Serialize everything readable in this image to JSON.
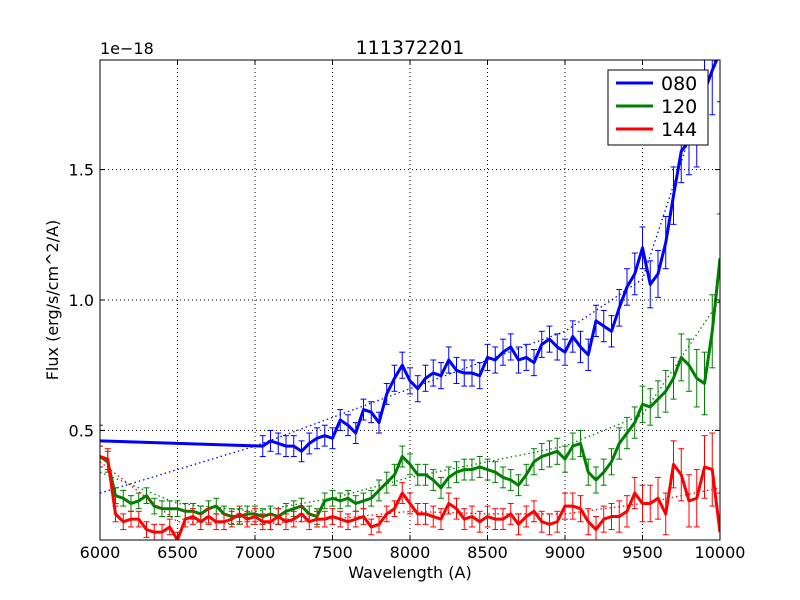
{
  "chart_data": {
    "type": "line",
    "title": "111372201",
    "xlabel": "Wavelength (A)",
    "ylabel": "Flux (erg/s/cm^2/A)",
    "offset_text": "1e−18",
    "xlim": [
      6000,
      10000
    ],
    "ylim": [
      0.08,
      1.92
    ],
    "x_ticks": [
      6000,
      6500,
      7000,
      7500,
      8000,
      8500,
      9000,
      9500,
      10000
    ],
    "x_tick_labels": [
      "6000",
      "6500",
      "7000",
      "7500",
      "8000",
      "8500",
      "9000",
      "9500",
      "10000"
    ],
    "y_ticks": [
      0.5,
      1.0,
      1.5
    ],
    "y_tick_labels": [
      "0.5",
      "1.0",
      "1.5"
    ],
    "grid": true,
    "legend_position": "top-right",
    "series": [
      {
        "name": "080",
        "color": "#0000ff",
        "x": [
          6000,
          7050,
          7100,
          7150,
          7200,
          7250,
          7300,
          7350,
          7400,
          7450,
          7500,
          7550,
          7600,
          7650,
          7700,
          7750,
          7800,
          7850,
          7900,
          7950,
          8000,
          8050,
          8100,
          8150,
          8200,
          8250,
          8300,
          8350,
          8400,
          8450,
          8500,
          8550,
          8600,
          8650,
          8700,
          8750,
          8800,
          8850,
          8900,
          8950,
          9000,
          9050,
          9100,
          9150,
          9200,
          9250,
          9300,
          9350,
          9400,
          9450,
          9500,
          9550,
          9600,
          9650,
          9700,
          9750,
          9800,
          9850,
          9900,
          9950,
          10000
        ],
        "y": [
          0.46,
          0.44,
          0.46,
          0.45,
          0.44,
          0.44,
          0.42,
          0.45,
          0.47,
          0.48,
          0.47,
          0.54,
          0.52,
          0.49,
          0.58,
          0.57,
          0.53,
          0.64,
          0.7,
          0.75,
          0.69,
          0.66,
          0.7,
          0.72,
          0.71,
          0.77,
          0.73,
          0.72,
          0.72,
          0.71,
          0.78,
          0.77,
          0.8,
          0.82,
          0.77,
          0.78,
          0.76,
          0.83,
          0.85,
          0.82,
          0.8,
          0.86,
          0.82,
          0.79,
          0.92,
          0.9,
          0.88,
          0.97,
          1.05,
          1.1,
          1.2,
          1.06,
          1.1,
          1.22,
          1.4,
          1.57,
          1.61,
          1.65,
          1.8,
          1.88,
          1.95
        ],
        "err": [
          0.06,
          0.04,
          0.04,
          0.04,
          0.04,
          0.04,
          0.04,
          0.04,
          0.04,
          0.04,
          0.04,
          0.04,
          0.04,
          0.04,
          0.04,
          0.04,
          0.04,
          0.04,
          0.05,
          0.05,
          0.05,
          0.05,
          0.05,
          0.05,
          0.05,
          0.05,
          0.05,
          0.05,
          0.05,
          0.05,
          0.05,
          0.05,
          0.05,
          0.05,
          0.05,
          0.05,
          0.05,
          0.05,
          0.05,
          0.05,
          0.05,
          0.06,
          0.06,
          0.06,
          0.06,
          0.06,
          0.06,
          0.07,
          0.07,
          0.08,
          0.08,
          0.09,
          0.09,
          0.1,
          0.11,
          0.12,
          0.13,
          0.14,
          0.15,
          0.17,
          0.19
        ],
        "fit_x": [
          6000,
          6500,
          7000,
          7500,
          8000,
          8500,
          9000,
          9500,
          10000
        ],
        "fit_y": [
          0.26,
          0.35,
          0.44,
          0.55,
          0.66,
          0.77,
          0.88,
          1.08,
          1.98
        ]
      },
      {
        "name": "120",
        "color": "#008000",
        "x": [
          6000,
          6050,
          6100,
          6150,
          6200,
          6250,
          6300,
          6350,
          6400,
          6450,
          6500,
          6550,
          6600,
          6650,
          6700,
          6750,
          6800,
          6850,
          6900,
          6950,
          7000,
          7050,
          7100,
          7150,
          7200,
          7250,
          7300,
          7350,
          7400,
          7450,
          7500,
          7550,
          7600,
          7650,
          7700,
          7750,
          7800,
          7850,
          7900,
          7950,
          8000,
          8050,
          8100,
          8150,
          8200,
          8250,
          8300,
          8350,
          8400,
          8450,
          8500,
          8550,
          8600,
          8650,
          8700,
          8750,
          8800,
          8850,
          8900,
          8950,
          9000,
          9050,
          9100,
          9150,
          9200,
          9250,
          9300,
          9350,
          9400,
          9450,
          9500,
          9550,
          9600,
          9650,
          9700,
          9750,
          9800,
          9850,
          9900,
          9950,
          10000
        ],
        "y": [
          0.4,
          0.38,
          0.25,
          0.24,
          0.22,
          0.23,
          0.25,
          0.21,
          0.2,
          0.2,
          0.2,
          0.19,
          0.19,
          0.18,
          0.2,
          0.21,
          0.18,
          0.17,
          0.17,
          0.18,
          0.18,
          0.17,
          0.18,
          0.17,
          0.19,
          0.2,
          0.21,
          0.18,
          0.17,
          0.23,
          0.24,
          0.23,
          0.24,
          0.22,
          0.23,
          0.24,
          0.27,
          0.3,
          0.33,
          0.4,
          0.37,
          0.33,
          0.33,
          0.31,
          0.28,
          0.32,
          0.34,
          0.35,
          0.35,
          0.36,
          0.35,
          0.34,
          0.32,
          0.31,
          0.29,
          0.33,
          0.38,
          0.4,
          0.41,
          0.42,
          0.39,
          0.44,
          0.45,
          0.34,
          0.31,
          0.34,
          0.38,
          0.45,
          0.49,
          0.53,
          0.6,
          0.59,
          0.62,
          0.65,
          0.7,
          0.78,
          0.75,
          0.7,
          0.68,
          0.88,
          1.16
        ],
        "err": [
          0.04,
          0.04,
          0.03,
          0.03,
          0.03,
          0.03,
          0.03,
          0.03,
          0.03,
          0.03,
          0.03,
          0.03,
          0.03,
          0.03,
          0.03,
          0.03,
          0.03,
          0.03,
          0.03,
          0.03,
          0.03,
          0.03,
          0.03,
          0.03,
          0.03,
          0.03,
          0.03,
          0.03,
          0.03,
          0.03,
          0.03,
          0.03,
          0.03,
          0.03,
          0.03,
          0.03,
          0.04,
          0.04,
          0.04,
          0.04,
          0.04,
          0.04,
          0.04,
          0.04,
          0.04,
          0.04,
          0.04,
          0.04,
          0.04,
          0.04,
          0.04,
          0.04,
          0.04,
          0.04,
          0.04,
          0.04,
          0.05,
          0.05,
          0.05,
          0.05,
          0.05,
          0.05,
          0.05,
          0.05,
          0.05,
          0.05,
          0.05,
          0.06,
          0.06,
          0.06,
          0.07,
          0.07,
          0.07,
          0.08,
          0.08,
          0.09,
          0.1,
          0.11,
          0.12,
          0.14,
          0.17
        ],
        "fit_x": [
          6000,
          6500,
          7000,
          7500,
          8000,
          8500,
          9000,
          9500,
          10000
        ],
        "fit_y": [
          0.34,
          0.22,
          0.19,
          0.24,
          0.32,
          0.38,
          0.44,
          0.56,
          1.0
        ]
      },
      {
        "name": "144",
        "color": "#ff0000",
        "x": [
          6000,
          6050,
          6100,
          6150,
          6200,
          6250,
          6300,
          6350,
          6400,
          6450,
          6500,
          6550,
          6600,
          6650,
          6700,
          6750,
          6800,
          6850,
          6900,
          6950,
          7000,
          7050,
          7100,
          7150,
          7200,
          7250,
          7300,
          7350,
          7400,
          7450,
          7500,
          7550,
          7600,
          7650,
          7700,
          7750,
          7800,
          7850,
          7900,
          7950,
          8000,
          8050,
          8100,
          8150,
          8200,
          8250,
          8300,
          8350,
          8400,
          8450,
          8500,
          8550,
          8600,
          8650,
          8700,
          8750,
          8800,
          8850,
          8900,
          8950,
          9000,
          9050,
          9100,
          9150,
          9200,
          9250,
          9300,
          9350,
          9400,
          9450,
          9500,
          9550,
          9600,
          9650,
          9700,
          9750,
          9800,
          9850,
          9900,
          9950,
          10000
        ],
        "y": [
          0.4,
          0.39,
          0.18,
          0.15,
          0.16,
          0.16,
          0.12,
          0.11,
          0.11,
          0.13,
          0.08,
          0.16,
          0.17,
          0.15,
          0.17,
          0.15,
          0.15,
          0.16,
          0.18,
          0.16,
          0.17,
          0.15,
          0.15,
          0.17,
          0.15,
          0.16,
          0.18,
          0.15,
          0.16,
          0.16,
          0.17,
          0.16,
          0.15,
          0.16,
          0.17,
          0.13,
          0.14,
          0.18,
          0.2,
          0.26,
          0.22,
          0.18,
          0.18,
          0.17,
          0.16,
          0.22,
          0.2,
          0.16,
          0.17,
          0.15,
          0.17,
          0.16,
          0.16,
          0.18,
          0.14,
          0.17,
          0.19,
          0.15,
          0.14,
          0.15,
          0.21,
          0.21,
          0.2,
          0.15,
          0.12,
          0.16,
          0.17,
          0.17,
          0.19,
          0.26,
          0.22,
          0.22,
          0.24,
          0.18,
          0.37,
          0.33,
          0.23,
          0.24,
          0.36,
          0.35,
          0.11
        ],
        "err": [
          0.04,
          0.04,
          0.03,
          0.03,
          0.03,
          0.03,
          0.03,
          0.03,
          0.03,
          0.03,
          0.03,
          0.03,
          0.03,
          0.03,
          0.03,
          0.03,
          0.03,
          0.03,
          0.03,
          0.03,
          0.03,
          0.03,
          0.03,
          0.03,
          0.03,
          0.03,
          0.03,
          0.03,
          0.03,
          0.03,
          0.03,
          0.03,
          0.03,
          0.03,
          0.03,
          0.03,
          0.03,
          0.03,
          0.03,
          0.04,
          0.04,
          0.04,
          0.04,
          0.04,
          0.04,
          0.04,
          0.04,
          0.04,
          0.04,
          0.04,
          0.04,
          0.04,
          0.04,
          0.04,
          0.04,
          0.04,
          0.04,
          0.04,
          0.04,
          0.04,
          0.05,
          0.05,
          0.05,
          0.05,
          0.05,
          0.05,
          0.05,
          0.06,
          0.06,
          0.06,
          0.07,
          0.07,
          0.08,
          0.08,
          0.09,
          0.1,
          0.1,
          0.11,
          0.12,
          0.14,
          0.15
        ],
        "fit_x": [
          6000,
          6500,
          7000,
          7500,
          8000,
          8500,
          9000,
          9500,
          10000
        ],
        "fit_y": [
          0.38,
          0.15,
          0.14,
          0.16,
          0.19,
          0.18,
          0.18,
          0.22,
          0.28
        ]
      }
    ]
  }
}
